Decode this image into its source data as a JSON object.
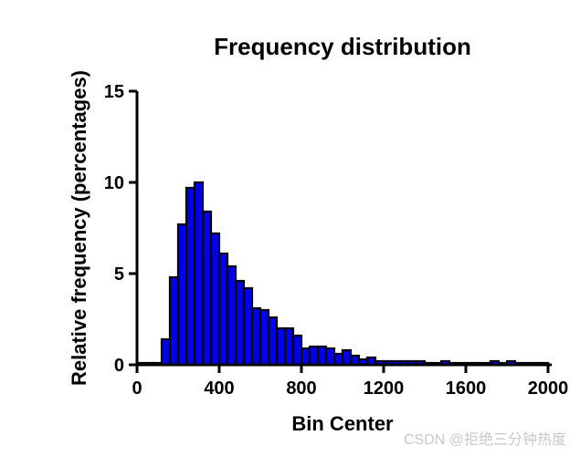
{
  "chart_data": {
    "type": "bar",
    "title": "Frequency distribution",
    "xlabel": "Bin Center",
    "ylabel": "Relative frequency (percentages)",
    "xlim": [
      0,
      2000
    ],
    "ylim": [
      0,
      15
    ],
    "x_ticks": [
      0,
      400,
      800,
      1200,
      1600,
      2000
    ],
    "y_ticks": [
      0,
      5,
      10,
      15
    ],
    "grid": false,
    "bar_color": "#0000ee",
    "bin_width": 40,
    "bin_centers": [
      20,
      60,
      100,
      140,
      180,
      220,
      260,
      300,
      340,
      380,
      420,
      460,
      500,
      540,
      580,
      620,
      660,
      700,
      740,
      780,
      820,
      860,
      900,
      940,
      980,
      1020,
      1060,
      1100,
      1140,
      1180,
      1220,
      1260,
      1300,
      1340,
      1380,
      1420,
      1460,
      1500,
      1540,
      1580,
      1620,
      1660,
      1700,
      1740,
      1780,
      1820,
      1860,
      1900,
      1940,
      1980
    ],
    "values": [
      0.1,
      0.1,
      0.1,
      1.4,
      4.8,
      7.7,
      9.7,
      10.0,
      8.4,
      7.2,
      6.1,
      5.4,
      4.6,
      4.2,
      3.1,
      3.0,
      2.6,
      2.0,
      2.0,
      1.6,
      0.9,
      1.0,
      1.0,
      0.9,
      0.6,
      0.8,
      0.5,
      0.3,
      0.4,
      0.2,
      0.2,
      0.2,
      0.2,
      0.2,
      0.2,
      0.1,
      0.1,
      0.2,
      0.1,
      0.1,
      0.1,
      0.1,
      0.1,
      0.2,
      0.1,
      0.2,
      0.1,
      0.1,
      0.1,
      0.1
    ]
  },
  "watermark": "CSDN @拒绝三分钟热度"
}
